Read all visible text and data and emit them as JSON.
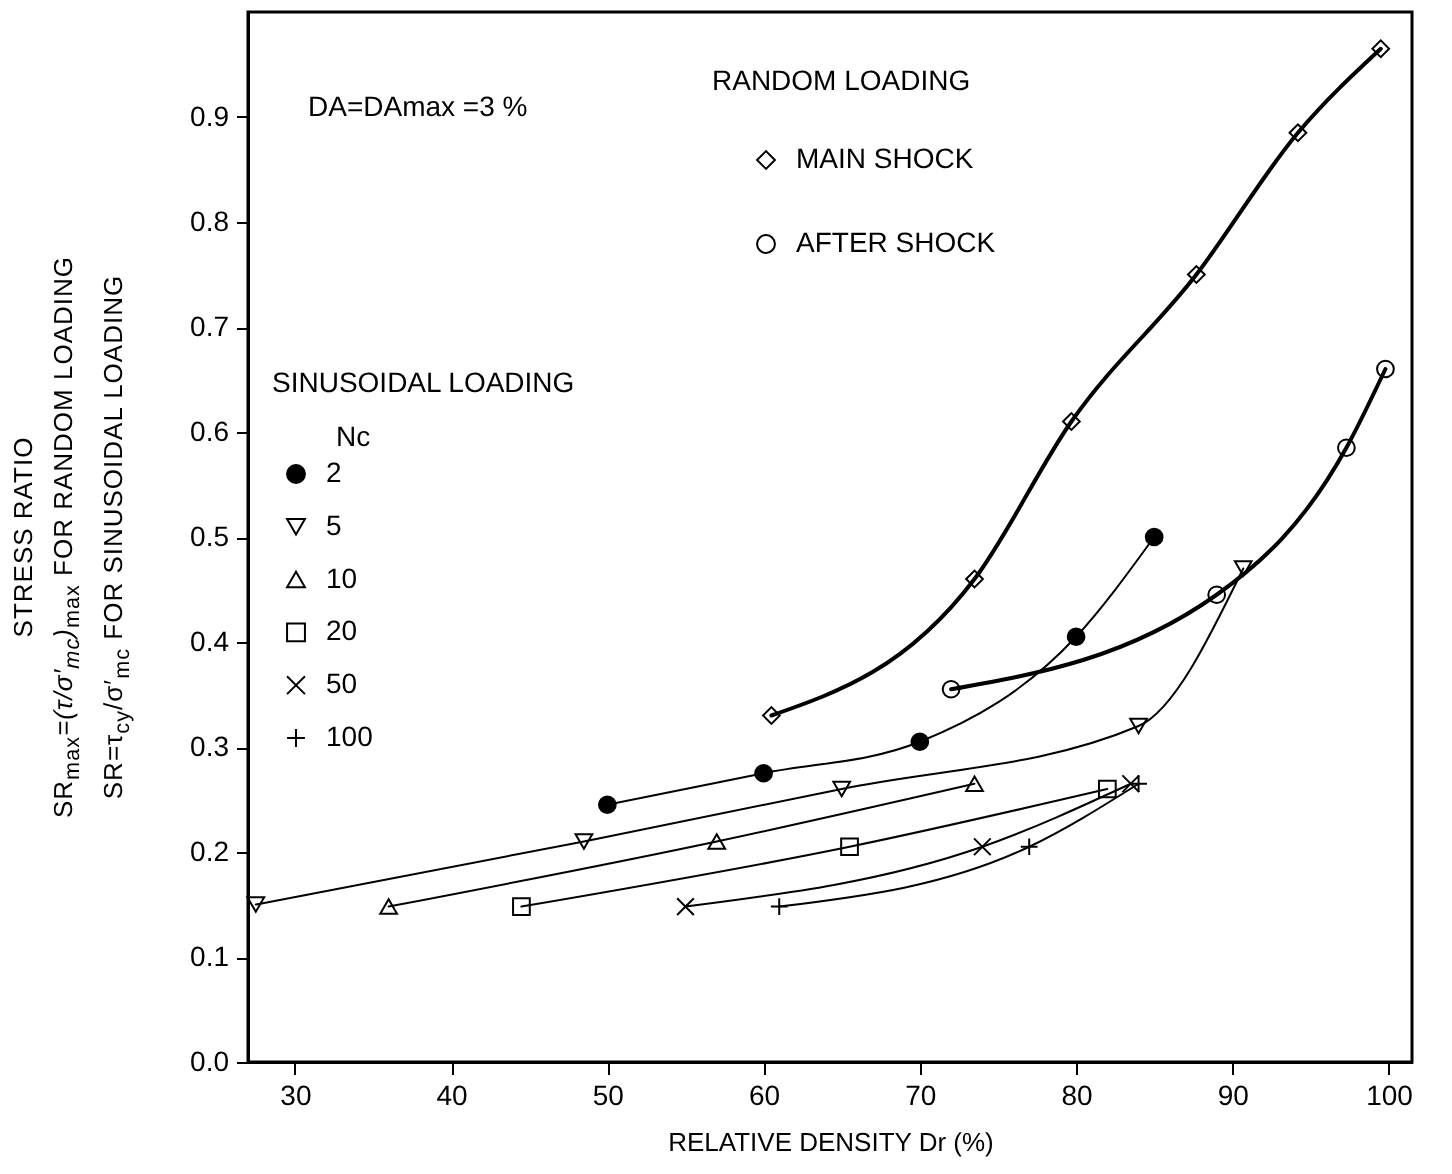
{
  "chart_data": {
    "type": "line",
    "xlabel": "RELATIVE DENSITY Dr (%)",
    "ylabel": "STRESS RATIO\nSR$_{max}$*=(τ/σ′$_{mc}$)*$_{max}$ FOR RANDOM LOADING\nSR=τ$_{cy}$/σ′$_{mc}$ FOR SINUSOIDAL LOADING",
    "legend_title": [
      "RANDOM LOADING",
      "Nc"
    ],
    "annotations": [
      "DA=DAmax =3 %",
      "SINUSOIDAL LOADING"
    ],
    "xlim": [
      27,
      101.5
    ],
    "xticks": [
      30,
      40,
      50,
      60,
      70,
      80,
      90,
      100
    ],
    "ylim": [
      0,
      1.0
    ],
    "yticks": [
      {
        "value": 0,
        "label": "0.0"
      },
      0.1,
      0.2,
      0.3,
      0.4,
      0.5,
      0.6,
      0.7,
      0.8,
      0.9
    ],
    "legend": "top left",
    "series": [
      {
        "name": "MAIN SHOCK",
        "color": "#000000",
        "marker": "diamond",
        "x": [
          60.5,
          73.5,
          79.7,
          87.7,
          94.2,
          99.5
        ],
        "values": [
          0.33,
          0.46,
          0.61,
          0.75,
          0.885,
          0.965
        ]
      },
      {
        "name": "AFTER SHOCK",
        "color": "#000000",
        "marker": "circle",
        "x": [
          72,
          89,
          97.3,
          99.8
        ],
        "values": [
          0.355,
          0.445,
          0.585,
          0.66
        ]
      },
      {
        "name": "2",
        "color": "#000000",
        "marker": "dot",
        "x": [
          50,
          60,
          70,
          80,
          85
        ],
        "values": [
          0.245,
          0.275,
          0.305,
          0.405,
          0.5
        ]
      },
      {
        "name": "5",
        "color": "#000000",
        "marker": "triangle-down",
        "x": [
          27.5,
          48.5,
          65,
          84,
          90.7
        ],
        "values": [
          0.15,
          0.21,
          0.26,
          0.32,
          0.47
        ]
      },
      {
        "name": "10",
        "color": "#000000",
        "marker": "triangle",
        "x": [
          36,
          57,
          73.5
        ],
        "values": [
          0.148,
          0.21,
          0.265
        ]
      },
      {
        "name": "20",
        "color": "#000000",
        "marker": "square",
        "x": [
          44.5,
          65.5,
          82
        ],
        "values": [
          0.148,
          0.205,
          0.26
        ]
      },
      {
        "name": "50",
        "color": "#000000",
        "marker": "x",
        "x": [
          55,
          74,
          83.5
        ],
        "values": [
          0.148,
          0.205,
          0.265
        ]
      },
      {
        "name": "100",
        "color": "#000000",
        "marker": "plus",
        "x": [
          61,
          77,
          84
        ],
        "values": [
          0.148,
          0.205,
          0.265
        ]
      }
    ]
  }
}
